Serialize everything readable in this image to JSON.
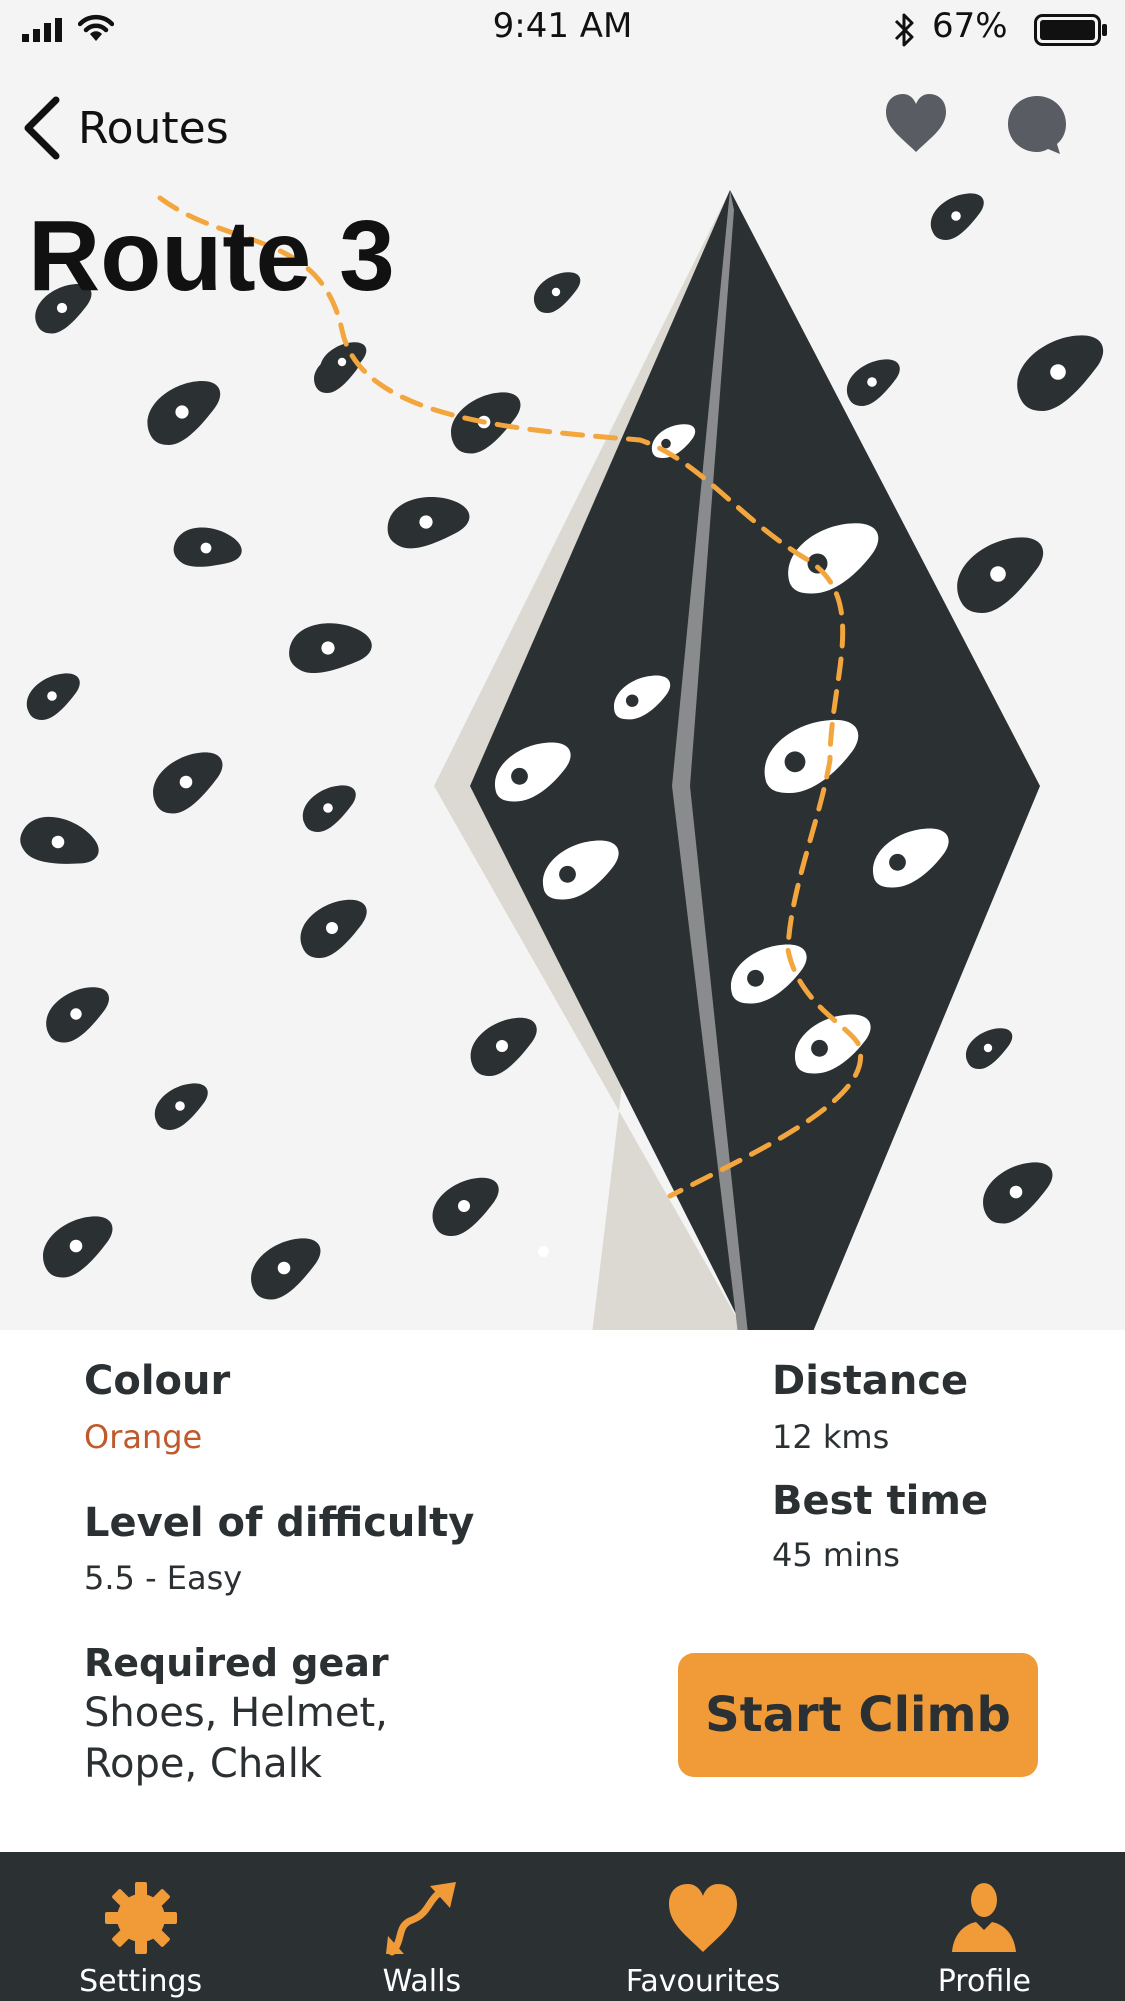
{
  "status_bar": {
    "time": "9:41 AM",
    "battery_percent": "67%",
    "battery_level": 0.67,
    "icons": [
      "signal-icon",
      "wifi-icon",
      "bluetooth-icon",
      "battery-icon"
    ]
  },
  "nav": {
    "back_label": "Routes",
    "icons": [
      "chevron-left-icon",
      "heart-icon",
      "chat-bubble-icon"
    ]
  },
  "route": {
    "title": "Route 3"
  },
  "details": {
    "colour_label": "Colour",
    "colour_value": "Orange",
    "difficulty_label": "Level of difficulty",
    "difficulty_value": "5.5 - Easy",
    "gear_label": "Required gear",
    "gear_line1": "Shoes, Helmet,",
    "gear_line2": "Rope, Chalk",
    "distance_label": "Distance",
    "distance_value": "12 kms",
    "best_time_label": "Best time",
    "best_time_value": "45 mins"
  },
  "actions": {
    "start_label": "Start Climb"
  },
  "tabs": [
    {
      "label": "Settings",
      "icon": "gear-icon"
    },
    {
      "label": "Walls",
      "icon": "route-arrow-icon"
    },
    {
      "label": "Favourites",
      "icon": "heart-icon"
    },
    {
      "label": "Profile",
      "icon": "person-icon"
    }
  ],
  "colors": {
    "accent": "#f09b38",
    "route_line": "#f3a63e",
    "dark": "#2b3033",
    "wall_bg": "#f4f4f4",
    "orange_text": "#c0592b"
  }
}
